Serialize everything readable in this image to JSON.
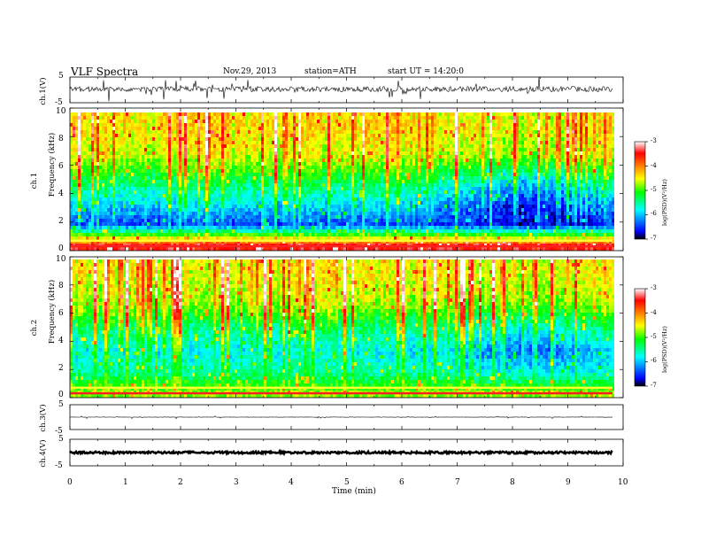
{
  "header": {
    "title": "VLF  Spectra",
    "date": "Nov.29, 2013",
    "station": "station=ATH",
    "start": "start  UT  =   14:20:0"
  },
  "x_axis": {
    "label": "Time  (min)",
    "ticks": [
      "0",
      "1",
      "2",
      "3",
      "4",
      "5",
      "6",
      "7",
      "8",
      "9",
      "10"
    ],
    "range": [
      0,
      10
    ]
  },
  "panels": {
    "wave1": {
      "ylabel": "ch.1(V)",
      "ticks": [
        "5",
        "-5"
      ]
    },
    "spec1": {
      "ylabel_channel": "ch.1",
      "ylabel": "Frequency  (kHz)",
      "ticks": [
        "10",
        "8",
        "6",
        "4",
        "2",
        "0"
      ]
    },
    "spec2": {
      "ylabel_channel": "ch.2",
      "ylabel": "Frequency  (kHz)",
      "ticks": [
        "10",
        "8",
        "6",
        "4",
        "2",
        "0"
      ]
    },
    "wave3": {
      "ylabel": "ch.3(V)",
      "ticks": [
        "5",
        "-5"
      ]
    },
    "wave4": {
      "ylabel": "ch.4(V)",
      "ticks": [
        "5",
        "-5"
      ]
    }
  },
  "colorbar": {
    "label": "log(PSD)(V²/Hz)",
    "ticks": [
      "-3",
      "-4",
      "-5",
      "-6",
      "-7"
    ],
    "range": [
      -7,
      -3
    ],
    "colors": [
      "#000000",
      "#0000ff",
      "#00ffff",
      "#00ff00",
      "#ffff00",
      "#ff8000",
      "#ff0000",
      "#ffffff"
    ]
  },
  "chart_data": [
    {
      "type": "line",
      "name": "ch.1 waveform",
      "x_unit": "min",
      "y_unit": "V",
      "xlim": [
        0,
        10
      ],
      "ylim": [
        -5,
        5
      ],
      "x": [
        0,
        1,
        2,
        3,
        4,
        5,
        6,
        7,
        8,
        9,
        9.8
      ],
      "y": [
        0.3,
        0.1,
        0.4,
        0.2,
        0.0,
        0.3,
        0.1,
        0.2,
        0.0,
        0.3,
        0.1
      ]
    },
    {
      "type": "heatmap",
      "name": "ch.1 spectrogram",
      "x_unit": "min",
      "y_unit": "kHz",
      "value_unit": "log(PSD)(V^2/Hz)",
      "xlim": [
        0,
        10
      ],
      "ylim": [
        0,
        10
      ],
      "value_range": [
        -7,
        -3
      ],
      "x": [
        0,
        1,
        2,
        3,
        4,
        5,
        6,
        7,
        8,
        9,
        9.8
      ],
      "y": [
        0.5,
        2,
        3.5,
        5,
        7,
        9
      ],
      "z": [
        [
          -3.5,
          -3.5,
          -3.5,
          -3.5,
          -3.5,
          -3.5,
          -3.5,
          -3.5,
          -3.5,
          -3.5,
          -3.5
        ],
        [
          -6.5,
          -6.5,
          -6.5,
          -6.5,
          -6.5,
          -6.5,
          -6.5,
          -6.6,
          -6.8,
          -6.8,
          -6.6
        ],
        [
          -6.0,
          -6.0,
          -6.0,
          -6.0,
          -6.0,
          -6.0,
          -6.0,
          -6.3,
          -6.7,
          -6.6,
          -6.2
        ],
        [
          -5.5,
          -5.5,
          -5.5,
          -5.5,
          -5.5,
          -5.5,
          -5.5,
          -5.8,
          -6.2,
          -6.0,
          -5.6
        ],
        [
          -4.8,
          -4.8,
          -4.8,
          -4.8,
          -4.8,
          -4.8,
          -4.8,
          -4.9,
          -5.0,
          -4.9,
          -4.8
        ],
        [
          -4.6,
          -4.6,
          -4.6,
          -4.6,
          -4.6,
          -4.6,
          -4.6,
          -4.7,
          -4.8,
          -4.7,
          -4.6
        ]
      ]
    },
    {
      "type": "heatmap",
      "name": "ch.2 spectrogram",
      "x_unit": "min",
      "y_unit": "kHz",
      "value_unit": "log(PSD)(V^2/Hz)",
      "xlim": [
        0,
        10
      ],
      "ylim": [
        0,
        10
      ],
      "value_range": [
        -7,
        -3
      ],
      "x": [
        0,
        1,
        2,
        3,
        4,
        5,
        6,
        7,
        8,
        9,
        9.8
      ],
      "y": [
        0.5,
        2,
        3.5,
        5,
        7,
        9
      ],
      "z": [
        [
          -4.8,
          -4.8,
          -4.8,
          -4.8,
          -4.8,
          -4.8,
          -4.8,
          -4.8,
          -4.8,
          -4.8,
          -4.8
        ],
        [
          -5.6,
          -5.6,
          -5.6,
          -5.6,
          -5.6,
          -5.6,
          -5.6,
          -5.8,
          -5.9,
          -5.9,
          -5.8
        ],
        [
          -5.9,
          -5.9,
          -5.9,
          -5.9,
          -5.9,
          -5.9,
          -5.9,
          -6.1,
          -6.4,
          -6.3,
          -6.0
        ],
        [
          -5.6,
          -5.6,
          -5.6,
          -5.6,
          -5.6,
          -5.6,
          -5.6,
          -5.7,
          -5.9,
          -5.8,
          -5.6
        ],
        [
          -4.9,
          -4.9,
          -4.9,
          -4.9,
          -4.9,
          -4.9,
          -4.9,
          -5.0,
          -5.0,
          -5.0,
          -4.9
        ],
        [
          -4.7,
          -4.7,
          -4.7,
          -4.7,
          -4.7,
          -4.7,
          -4.7,
          -4.7,
          -4.8,
          -4.7,
          -4.7
        ]
      ]
    },
    {
      "type": "line",
      "name": "ch.3 waveform",
      "x_unit": "min",
      "y_unit": "V",
      "xlim": [
        0,
        10
      ],
      "ylim": [
        -5,
        5
      ],
      "x": [
        0,
        9.8
      ],
      "y": [
        0,
        0
      ]
    },
    {
      "type": "line",
      "name": "ch.4 waveform",
      "x_unit": "min",
      "y_unit": "V",
      "xlim": [
        0,
        10
      ],
      "ylim": [
        -5,
        5
      ],
      "x": [
        0,
        9.8
      ],
      "y": [
        0,
        0
      ]
    }
  ]
}
